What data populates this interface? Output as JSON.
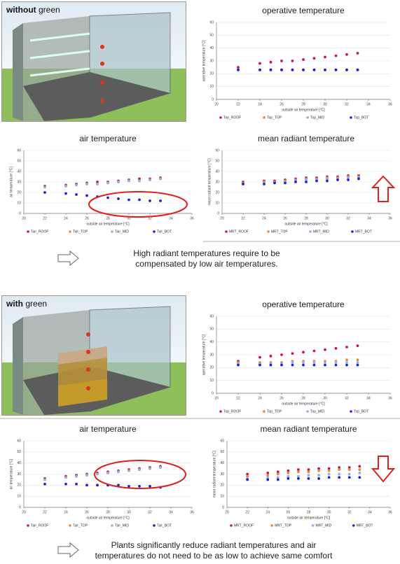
{
  "panels": [
    {
      "label_bold": "without",
      "label_rest": "green"
    },
    {
      "label_bold": "with",
      "label_rest": "green"
    }
  ],
  "notes": [
    {
      "lines": [
        "High radiant temperatures require to be",
        "compensated by low air temperatures."
      ]
    },
    {
      "lines": [
        "Plants significantly reduce radiant temperatures and air",
        "temperatures do not need to be as low to achieve same comfort"
      ]
    }
  ],
  "chart_data": [
    {
      "type": "scatter",
      "title": "operative temperature",
      "x_label": "outside air temperature [°C]",
      "y_label": "operative temperature [°C]",
      "x": [
        22,
        24,
        25,
        26,
        27,
        28,
        29,
        30,
        31,
        32,
        33
      ],
      "xlim": [
        20,
        36
      ],
      "xticks": [
        20,
        22,
        24,
        26,
        28,
        30,
        32,
        34,
        36
      ],
      "ylim": [
        0,
        60
      ],
      "yticks": [
        0,
        10,
        20,
        30,
        40,
        50,
        60
      ],
      "legend": "bottom",
      "series": [
        {
          "name": "Top_ROOF",
          "color": "#c2185b",
          "values": [
            25,
            28,
            29,
            30,
            30,
            31,
            32,
            33,
            34,
            35,
            36
          ]
        },
        {
          "name": "Top_TOP",
          "color": "#e8863a",
          "values": [
            23,
            23,
            23,
            23,
            23,
            23,
            23,
            23,
            23,
            23,
            23
          ]
        },
        {
          "name": "Top_MID",
          "color": "#8fb4e3",
          "values": [
            23,
            23,
            23,
            23,
            23,
            23,
            23,
            23,
            23,
            23,
            23
          ]
        },
        {
          "name": "Top_BOT",
          "color": "#1f1fe0",
          "values": [
            23,
            23,
            23,
            23,
            23,
            23,
            23,
            23,
            23,
            23,
            23
          ]
        }
      ]
    },
    {
      "type": "scatter",
      "title": "air temperature",
      "x_label": "outside air temperature [°C]",
      "y_label": "air temperature [°C]",
      "x": [
        22,
        24,
        25,
        26,
        27,
        28,
        29,
        30,
        31,
        32,
        33
      ],
      "xlim": [
        20,
        36
      ],
      "xticks": [
        20,
        22,
        24,
        26,
        28,
        30,
        32,
        34,
        36
      ],
      "ylim": [
        0,
        60
      ],
      "yticks": [
        0,
        10,
        20,
        30,
        40,
        50,
        60
      ],
      "legend": "bottom",
      "series": [
        {
          "name": "Tair_ROOF",
          "color": "#c2185b",
          "values": [
            26,
            27,
            28,
            29,
            30,
            30,
            31,
            32,
            33,
            33,
            34
          ]
        },
        {
          "name": "Tair_TOP",
          "color": "#e8863a",
          "values": [
            25,
            26,
            27,
            28,
            28,
            29,
            30,
            31,
            31,
            32,
            33
          ]
        },
        {
          "name": "Tair_MID",
          "color": "#8fb4e3",
          "values": [
            25,
            26,
            27,
            28,
            28,
            29,
            30,
            31,
            31,
            32,
            33
          ]
        },
        {
          "name": "Tair_BOT",
          "color": "#1f1fe0",
          "values": [
            20,
            19,
            18,
            17,
            16,
            15,
            14,
            13,
            13,
            12,
            12
          ]
        }
      ]
    },
    {
      "type": "scatter",
      "title": "mean radiant temperature",
      "x_label": "outside air temperature [°C]",
      "y_label": "mean radiant temperature [°C]",
      "x": [
        22,
        24,
        25,
        26,
        27,
        28,
        29,
        30,
        31,
        32,
        33
      ],
      "xlim": [
        20,
        36
      ],
      "xticks": [
        20,
        22,
        24,
        26,
        28,
        30,
        32,
        34,
        36
      ],
      "ylim": [
        0,
        60
      ],
      "yticks": [
        0,
        10,
        20,
        30,
        40,
        50,
        60
      ],
      "legend": "bottom",
      "series": [
        {
          "name": "MRT_ROOF",
          "color": "#c2185b",
          "values": [
            30,
            31,
            31,
            32,
            33,
            34,
            34,
            35,
            35,
            36,
            36
          ]
        },
        {
          "name": "MRT_TOP",
          "color": "#e8863a",
          "values": [
            29,
            30,
            30,
            31,
            32,
            33,
            33,
            34,
            34,
            35,
            35
          ]
        },
        {
          "name": "MRT_MID",
          "color": "#8fb4e3",
          "values": [
            28,
            29,
            29,
            30,
            31,
            32,
            32,
            33,
            33,
            34,
            34
          ]
        },
        {
          "name": "MRT_BOT",
          "color": "#1f1fe0",
          "values": [
            28,
            28,
            29,
            29,
            30,
            30,
            31,
            31,
            32,
            32,
            33
          ]
        }
      ]
    },
    {
      "type": "scatter",
      "title": "operative temperature",
      "x_label": "outside air temperature [°C]",
      "y_label": "operative temperature [°C]",
      "x": [
        22,
        24,
        25,
        26,
        27,
        28,
        29,
        30,
        31,
        32,
        33
      ],
      "xlim": [
        20,
        36
      ],
      "xticks": [
        20,
        22,
        24,
        26,
        28,
        30,
        32,
        34,
        36
      ],
      "ylim": [
        0,
        60
      ],
      "yticks": [
        0,
        10,
        20,
        30,
        40,
        50,
        60
      ],
      "legend": "bottom",
      "series": [
        {
          "name": "Top_ROOF",
          "color": "#c2185b",
          "values": [
            25,
            28,
            29,
            30,
            31,
            32,
            33,
            34,
            35,
            36,
            37
          ]
        },
        {
          "name": "Top_TOP",
          "color": "#e8863a",
          "values": [
            24,
            24,
            24,
            24,
            25,
            25,
            25,
            25,
            25,
            26,
            26
          ]
        },
        {
          "name": "Top_MID",
          "color": "#8fb4e3",
          "values": [
            23,
            23,
            23,
            23,
            24,
            24,
            24,
            24,
            24,
            24,
            24
          ]
        },
        {
          "name": "Top_BOT",
          "color": "#1f1fe0",
          "values": [
            22,
            22,
            22,
            22,
            22,
            22,
            22,
            22,
            22,
            22,
            22
          ]
        }
      ]
    },
    {
      "type": "scatter",
      "title": "air temperature",
      "x_label": "outside air temperature [°C]",
      "y_label": "air temperature [°C]",
      "x": [
        22,
        24,
        25,
        26,
        27,
        28,
        29,
        30,
        31,
        32,
        33
      ],
      "xlim": [
        20,
        36
      ],
      "xticks": [
        20,
        22,
        24,
        26,
        28,
        30,
        32,
        34,
        36
      ],
      "ylim": [
        0,
        60
      ],
      "yticks": [
        0,
        10,
        20,
        30,
        40,
        50,
        60
      ],
      "legend": "bottom",
      "series": [
        {
          "name": "Tair_ROOF",
          "color": "#c2185b",
          "values": [
            26,
            28,
            29,
            30,
            31,
            32,
            33,
            34,
            35,
            36,
            37
          ]
        },
        {
          "name": "Tair_TOP",
          "color": "#e8863a",
          "values": [
            25,
            27,
            28,
            29,
            30,
            31,
            32,
            33,
            34,
            35,
            36
          ]
        },
        {
          "name": "Tair_MID",
          "color": "#8fb4e3",
          "values": [
            25,
            27,
            28,
            29,
            30,
            31,
            32,
            33,
            34,
            35,
            36
          ]
        },
        {
          "name": "Tair_BOT",
          "color": "#1f1fe0",
          "values": [
            21,
            21,
            21,
            20,
            20,
            20,
            20,
            19,
            19,
            19,
            18
          ]
        }
      ]
    },
    {
      "type": "scatter",
      "title": "mean radiant temperature",
      "x_label": "outside air temperature [°C]",
      "y_label": "mean radiant temperature [°C]",
      "x": [
        22,
        24,
        25,
        26,
        27,
        28,
        29,
        30,
        31,
        32,
        33
      ],
      "xlim": [
        20,
        36
      ],
      "xticks": [
        20,
        22,
        24,
        26,
        28,
        30,
        32,
        34,
        36
      ],
      "ylim": [
        0,
        60
      ],
      "yticks": [
        0,
        10,
        20,
        30,
        40,
        50,
        60
      ],
      "legend": "bottom",
      "series": [
        {
          "name": "MRT_ROOF",
          "color": "#c2185b",
          "values": [
            30,
            31,
            32,
            33,
            34,
            34,
            35,
            35,
            36,
            36,
            37
          ]
        },
        {
          "name": "MRT_TOP",
          "color": "#e8863a",
          "values": [
            28,
            29,
            30,
            31,
            32,
            32,
            33,
            33,
            34,
            34,
            34
          ]
        },
        {
          "name": "MRT_MID",
          "color": "#8fb4e3",
          "values": [
            26,
            27,
            27,
            28,
            28,
            29,
            29,
            30,
            30,
            30,
            31
          ]
        },
        {
          "name": "MRT_BOT",
          "color": "#1f1fe0",
          "values": [
            25,
            25,
            25,
            26,
            26,
            26,
            26,
            27,
            27,
            27,
            27
          ]
        }
      ]
    }
  ]
}
